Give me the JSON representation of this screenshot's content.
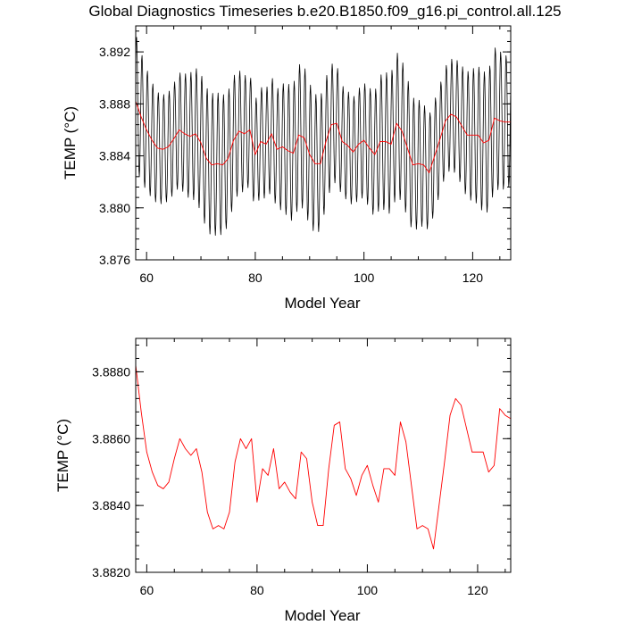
{
  "chart_data": [
    {
      "type": "line",
      "title": "Global Diagnostics Timeseries b.e20.B1850.f09_g16.pi_control.all.125",
      "xlabel": "Model Year",
      "ylabel": "TEMP (°C)",
      "xlim": [
        58,
        127
      ],
      "ylim": [
        3.876,
        3.894
      ],
      "x_ticks": [
        60,
        80,
        100,
        120
      ],
      "x_tick_labels": [
        "60",
        "80",
        "100",
        "120"
      ],
      "y_ticks": [
        3.876,
        3.88,
        3.884,
        3.888,
        3.892
      ],
      "y_tick_labels": [
        "3.876",
        "3.880",
        "3.884",
        "3.888",
        "3.892"
      ],
      "series": [
        {
          "color": "#000000",
          "style": "monthly",
          "x_start": 58.0,
          "x_step": 0.0833,
          "seasonal_amplitude": 0.0055
        },
        {
          "color": "#ff0000",
          "style": "annual",
          "x": [
            58,
            59,
            60,
            61,
            62,
            63,
            64,
            65,
            66,
            67,
            68,
            69,
            70,
            71,
            72,
            73,
            74,
            75,
            76,
            77,
            78,
            79,
            80,
            81,
            82,
            83,
            84,
            85,
            86,
            87,
            88,
            89,
            90,
            91,
            92,
            93,
            94,
            95,
            96,
            97,
            98,
            99,
            100,
            101,
            102,
            103,
            104,
            105,
            106,
            107,
            108,
            109,
            110,
            111,
            112,
            113,
            114,
            115,
            116,
            117,
            118,
            119,
            120,
            121,
            122,
            123,
            124,
            125,
            126,
            127
          ],
          "y": [
            3.8882,
            3.887,
            3.886,
            3.8852,
            3.8846,
            3.8845,
            3.8847,
            3.8853,
            3.886,
            3.8857,
            3.8855,
            3.8857,
            3.885,
            3.8838,
            3.8833,
            3.8834,
            3.8833,
            3.8838,
            3.8852,
            3.8859,
            3.8857,
            3.886,
            3.8841,
            3.8851,
            3.8849,
            3.8857,
            3.8845,
            3.8847,
            3.8844,
            3.8842,
            3.8856,
            3.8854,
            3.8841,
            3.8834,
            3.8834,
            3.8851,
            3.8864,
            3.8865,
            3.8851,
            3.8848,
            3.8843,
            3.8849,
            3.8852,
            3.8846,
            3.8841,
            3.8851,
            3.8851,
            3.8849,
            3.8865,
            3.8859,
            3.8846,
            3.8833,
            3.8834,
            3.8833,
            3.8827,
            3.884,
            3.8853,
            3.8867,
            3.8872,
            3.887,
            3.8863,
            3.8856,
            3.8856,
            3.8856,
            3.885,
            3.8852,
            3.8869,
            3.8867,
            3.8866,
            3.8866
          ]
        }
      ],
      "grid": false,
      "legend": "none"
    },
    {
      "type": "line",
      "title": "",
      "xlabel": "Model Year",
      "ylabel": "TEMP (°C)",
      "xlim": [
        58,
        126
      ],
      "ylim": [
        3.882,
        3.889
      ],
      "x_ticks": [
        60,
        80,
        100,
        120
      ],
      "x_tick_labels": [
        "60",
        "80",
        "100",
        "120"
      ],
      "y_ticks": [
        3.882,
        3.884,
        3.886,
        3.888
      ],
      "y_tick_labels": [
        "3.8820",
        "3.8840",
        "3.8860",
        "3.8880"
      ],
      "series": [
        {
          "color": "#ff0000",
          "x": [
            58,
            59,
            60,
            61,
            62,
            63,
            64,
            65,
            66,
            67,
            68,
            69,
            70,
            71,
            72,
            73,
            74,
            75,
            76,
            77,
            78,
            79,
            80,
            81,
            82,
            83,
            84,
            85,
            86,
            87,
            88,
            89,
            90,
            91,
            92,
            93,
            94,
            95,
            96,
            97,
            98,
            99,
            100,
            101,
            102,
            103,
            104,
            105,
            106,
            107,
            108,
            109,
            110,
            111,
            112,
            113,
            114,
            115,
            116,
            117,
            118,
            119,
            120,
            121,
            122,
            123,
            124,
            125,
            126
          ],
          "y": [
            3.8882,
            3.8868,
            3.8856,
            3.885,
            3.8846,
            3.8845,
            3.8847,
            3.8854,
            3.886,
            3.8857,
            3.8855,
            3.8857,
            3.885,
            3.8838,
            3.8833,
            3.8834,
            3.8833,
            3.8838,
            3.8853,
            3.886,
            3.8857,
            3.886,
            3.8841,
            3.8851,
            3.8849,
            3.8857,
            3.8845,
            3.8847,
            3.8844,
            3.8842,
            3.8856,
            3.8854,
            3.8841,
            3.8834,
            3.8834,
            3.8851,
            3.8864,
            3.8865,
            3.8851,
            3.8848,
            3.8843,
            3.8849,
            3.8852,
            3.8846,
            3.8841,
            3.8851,
            3.8851,
            3.8849,
            3.8865,
            3.8859,
            3.8846,
            3.8833,
            3.8834,
            3.8833,
            3.8827,
            3.884,
            3.8853,
            3.8867,
            3.8872,
            3.887,
            3.8863,
            3.8856,
            3.8856,
            3.8856,
            3.885,
            3.8852,
            3.8869,
            3.8867,
            3.8866
          ]
        }
      ],
      "grid": false,
      "legend": "none"
    }
  ]
}
